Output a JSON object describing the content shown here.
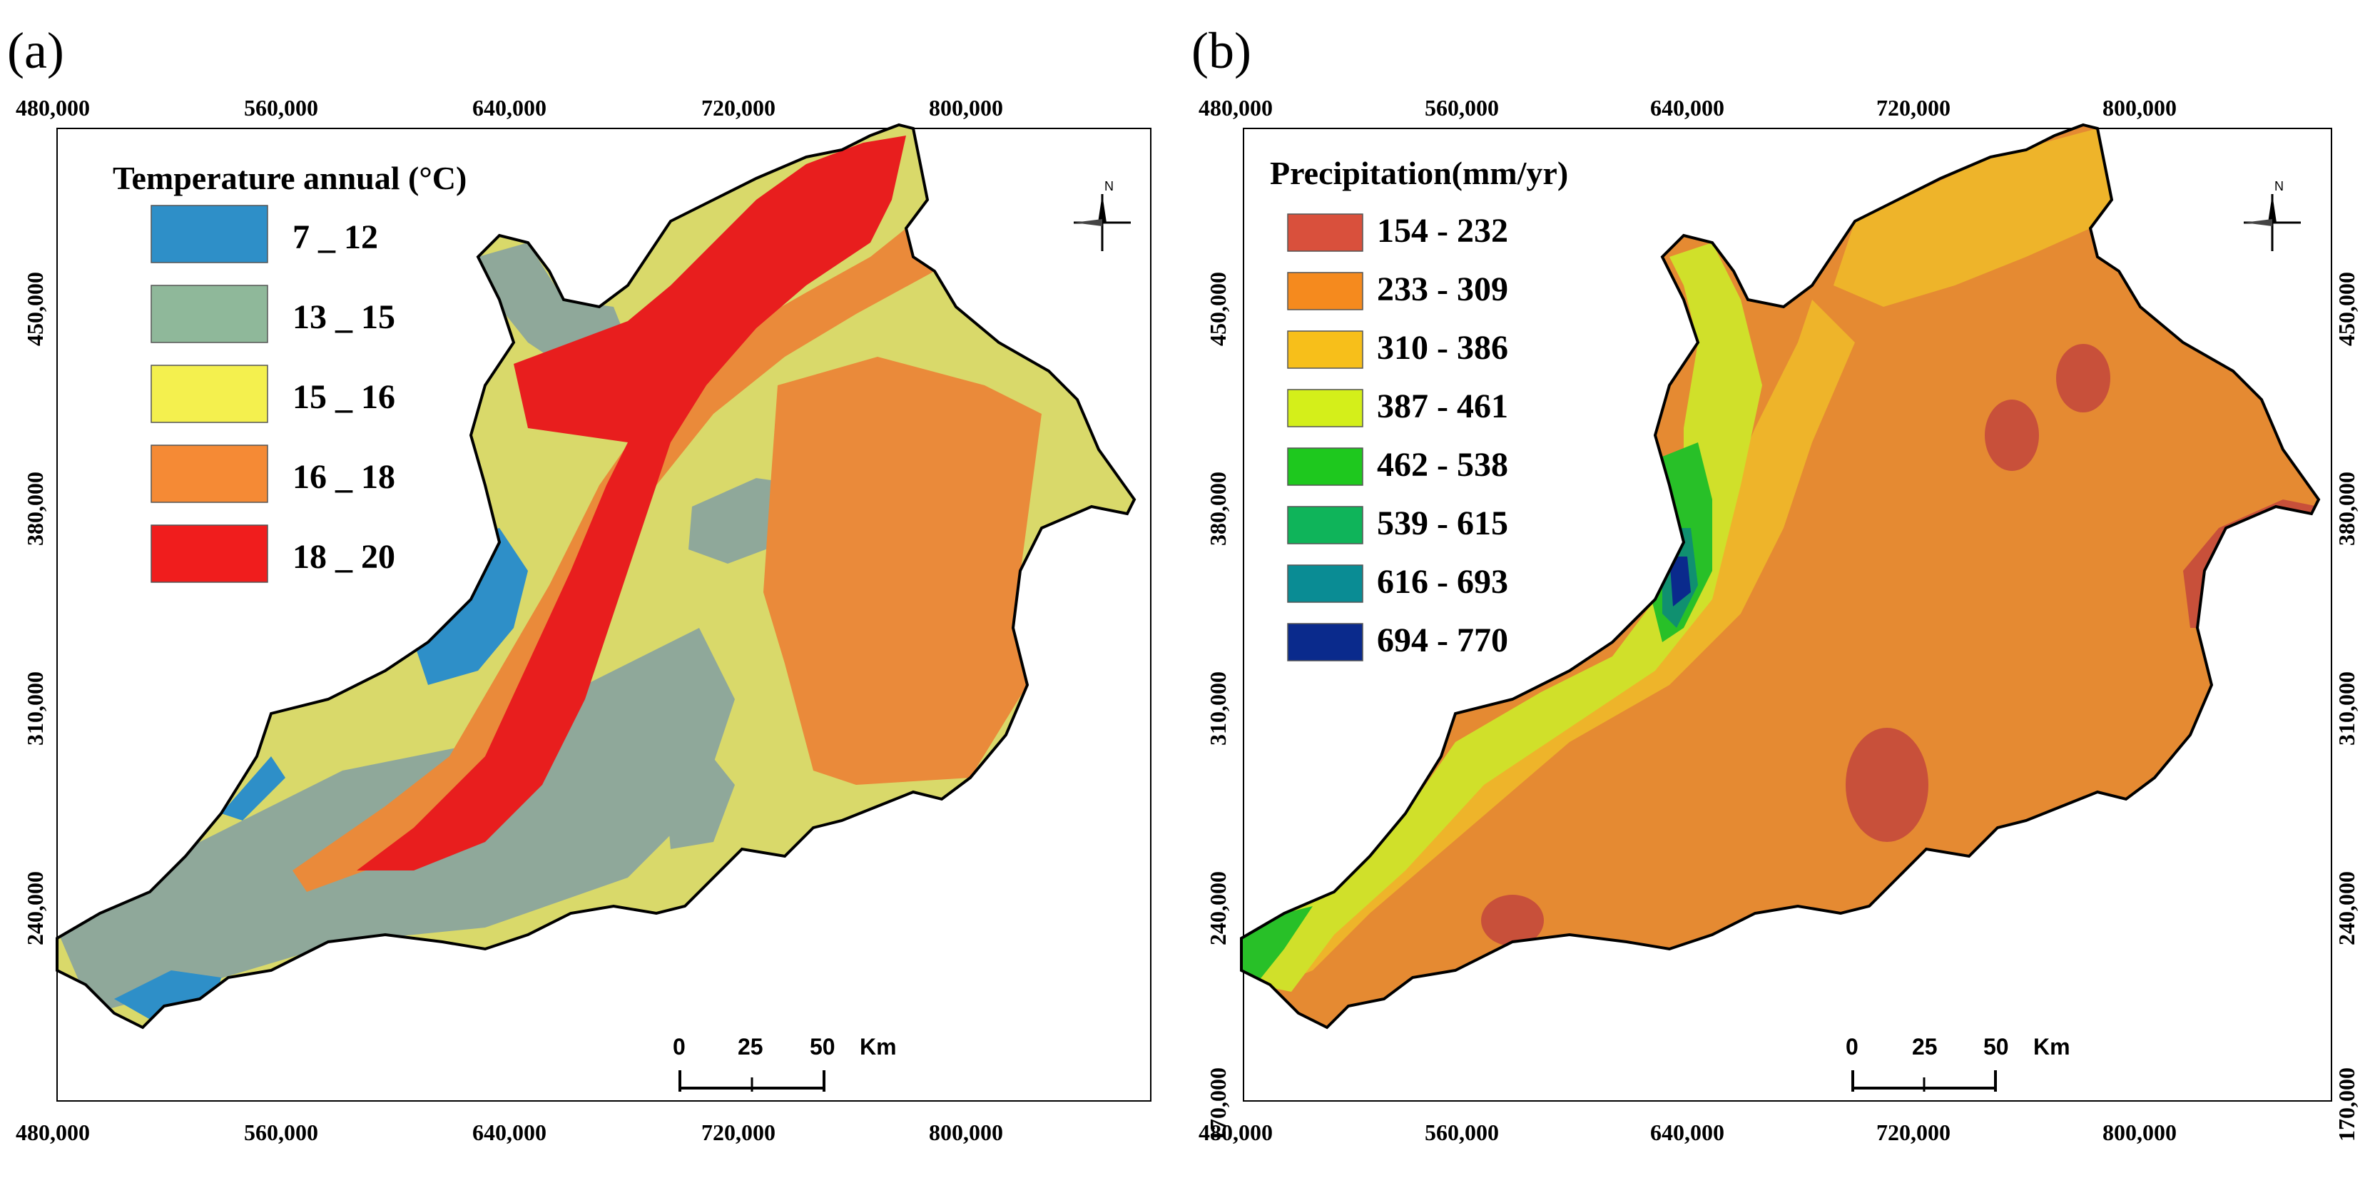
{
  "panels": [
    {
      "label": "(a)",
      "legend_title": "Temperature annual (°C)",
      "legend": [
        {
          "label": "7 _ 12",
          "color": "#2e8fc8"
        },
        {
          "label": "13 _ 15",
          "color": "#8fb89a"
        },
        {
          "label": "15 _ 16",
          "color": "#f4f04e"
        },
        {
          "label": "16 _ 18",
          "color": "#f58a35"
        },
        {
          "label": "18 _ 20",
          "color": "#f01d1d"
        }
      ],
      "zone_colors": {
        "background": "#d9d96a",
        "cold": "#2e8fc8",
        "cool": "#8fa89a",
        "warm": "#ea8a3a",
        "hot": "#e81e1e"
      }
    },
    {
      "label": "(b)",
      "legend_title": "Precipitation(mm/yr)",
      "legend": [
        {
          "label": "154 - 232",
          "color": "#d9503c"
        },
        {
          "label": "233 - 309",
          "color": "#f58a1e"
        },
        {
          "label": "310 - 386",
          "color": "#f7bf1a"
        },
        {
          "label": "387 - 461",
          "color": "#d4ef1a"
        },
        {
          "label": "462 - 538",
          "color": "#1ec81e"
        },
        {
          "label": "539 - 615",
          "color": "#0fb45a"
        },
        {
          "label": "616 - 693",
          "color": "#0a8c94"
        },
        {
          "label": "694 - 770",
          "color": "#0a2a8c"
        }
      ],
      "zone_colors": {
        "background": "#e58a32",
        "dry": "#c8503a",
        "mid": "#eeb42a",
        "wet1": "#d0e02a",
        "wet2": "#28c028",
        "wet3": "#109070",
        "wet4": "#0a2a8c"
      }
    }
  ],
  "x_ticks": [
    "480,000",
    "560,000",
    "640,000",
    "720,000",
    "800,000"
  ],
  "y_ticks": [
    "450,000",
    "380,000",
    "310,000",
    "240,000",
    "170,000"
  ],
  "y_ticks_left_a": [
    "450,000",
    "380,000",
    "310,000",
    "240,000"
  ],
  "scale_bar": {
    "labels": [
      "0",
      "25",
      "50"
    ],
    "unit": "Km"
  },
  "north_label": "N"
}
